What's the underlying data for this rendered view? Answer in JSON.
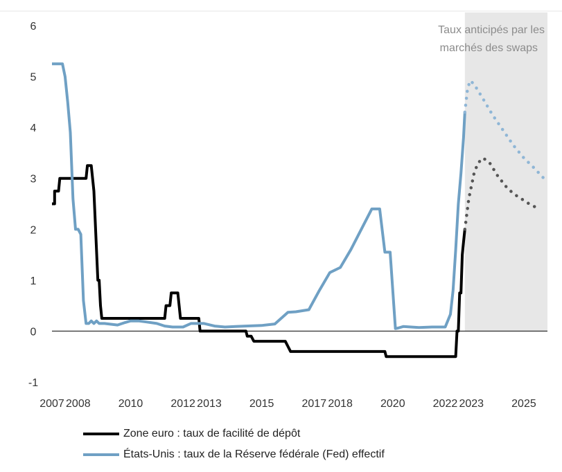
{
  "chart_data": {
    "type": "line",
    "xlim": [
      2007.0,
      2025.9
    ],
    "ylim": [
      -1,
      6
    ],
    "y_ticks": [
      -1,
      0,
      1,
      2,
      3,
      4,
      5,
      6
    ],
    "x_ticks": [
      2007,
      2008,
      2010,
      2012,
      2013,
      2015,
      2017,
      2018,
      2020,
      2022,
      2023,
      2025
    ],
    "grid": false,
    "legend_position": "bottom",
    "forecast_region": {
      "from": 2022.75,
      "to": 2025.9,
      "label_line1": "Taux anticipés par les",
      "label_line2": "marchés des swaps"
    },
    "series": [
      {
        "name": "Zone euro : taux de facilité de dépôt",
        "color": "#000000",
        "x": [
          2007.0,
          2007.1,
          2007.1,
          2007.2,
          2007.25,
          2007.3,
          2008.3,
          2008.35,
          2008.5,
          2008.6,
          2008.75,
          2008.8,
          2008.85,
          2008.9,
          2008.95,
          2009.0,
          2009.05,
          2009.1,
          2011.3,
          2011.35,
          2011.5,
          2011.55,
          2011.6,
          2011.8,
          2011.85,
          2011.9,
          2011.95,
          2012.6,
          2012.65,
          2014.4,
          2014.45,
          2014.6,
          2014.7,
          2015.9,
          2016.0,
          2016.1,
          2016.2,
          2019.7,
          2019.75,
          2022.4,
          2022.45,
          2022.5,
          2022.55,
          2022.6,
          2022.65,
          2022.7,
          2022.75
        ],
        "y": [
          2.5,
          2.5,
          2.75,
          2.75,
          2.75,
          3.0,
          3.0,
          3.25,
          3.25,
          2.75,
          1.0,
          1.0,
          0.5,
          0.25,
          0.25,
          0.25,
          0.25,
          0.25,
          0.25,
          0.5,
          0.5,
          0.75,
          0.75,
          0.75,
          0.5,
          0.25,
          0.25,
          0.25,
          0.0,
          0.0,
          -0.1,
          -0.1,
          -0.2,
          -0.2,
          -0.3,
          -0.4,
          -0.4,
          -0.4,
          -0.5,
          -0.5,
          0.0,
          0.0,
          0.75,
          0.75,
          1.5,
          1.75,
          2.0
        ]
      },
      {
        "name": "États-Unis : taux de la Réserve fédérale (Fed) effectif",
        "color": "#6fa0c4",
        "x": [
          2007.0,
          2007.4,
          2007.5,
          2007.6,
          2007.7,
          2007.8,
          2007.9,
          2008.0,
          2008.1,
          2008.2,
          2008.3,
          2008.4,
          2008.5,
          2008.6,
          2008.7,
          2008.8,
          2009.0,
          2009.5,
          2009.8,
          2010.0,
          2010.3,
          2010.6,
          2011.0,
          2011.3,
          2011.6,
          2012.0,
          2012.3,
          2012.8,
          2013.2,
          2013.6,
          2014.0,
          2014.4,
          2015.0,
          2015.5,
          2016.0,
          2016.3,
          2016.8,
          2017.2,
          2017.6,
          2018.0,
          2018.4,
          2018.8,
          2019.2,
          2019.5,
          2019.7,
          2019.9,
          2020.1,
          2020.2,
          2020.4,
          2021.0,
          2021.5,
          2022.0,
          2022.2,
          2022.3,
          2022.4,
          2022.5,
          2022.6,
          2022.7,
          2022.75
        ],
        "y": [
          5.25,
          5.25,
          5.0,
          4.5,
          3.9,
          2.6,
          2.0,
          2.0,
          1.9,
          0.6,
          0.15,
          0.15,
          0.2,
          0.15,
          0.2,
          0.15,
          0.15,
          0.12,
          0.17,
          0.2,
          0.2,
          0.18,
          0.15,
          0.1,
          0.08,
          0.08,
          0.15,
          0.15,
          0.1,
          0.08,
          0.09,
          0.1,
          0.11,
          0.14,
          0.37,
          0.38,
          0.42,
          0.8,
          1.15,
          1.25,
          1.6,
          2.0,
          2.4,
          2.4,
          1.55,
          1.55,
          0.05,
          0.06,
          0.09,
          0.07,
          0.08,
          0.08,
          0.33,
          0.8,
          1.6,
          2.5,
          3.1,
          3.8,
          4.3
        ]
      },
      {
        "name": "",
        "color": "#555555",
        "dotted": true,
        "x": [
          2022.75,
          2022.9,
          2023.1,
          2023.25,
          2023.45,
          2023.7,
          2024.0,
          2024.3,
          2024.6,
          2024.9,
          2025.2,
          2025.5
        ],
        "y": [
          2.0,
          2.6,
          3.1,
          3.3,
          3.4,
          3.3,
          3.05,
          2.85,
          2.7,
          2.6,
          2.5,
          2.42
        ]
      },
      {
        "name": "",
        "color": "#8fb6d6",
        "dotted": true,
        "x": [
          2022.75,
          2022.85,
          2022.95,
          2023.1,
          2023.4,
          2023.8,
          2024.2,
          2024.6,
          2025.0,
          2025.4,
          2025.8
        ],
        "y": [
          4.3,
          4.75,
          4.92,
          4.85,
          4.6,
          4.25,
          3.95,
          3.65,
          3.4,
          3.2,
          2.98
        ]
      }
    ]
  },
  "legend": {
    "items": [
      {
        "label": "Zone euro : taux de facilité de dépôt",
        "color": "#000000"
      },
      {
        "label": "États-Unis : taux de la Réserve fédérale (Fed) effectif",
        "color": "#6fa0c4"
      }
    ]
  }
}
